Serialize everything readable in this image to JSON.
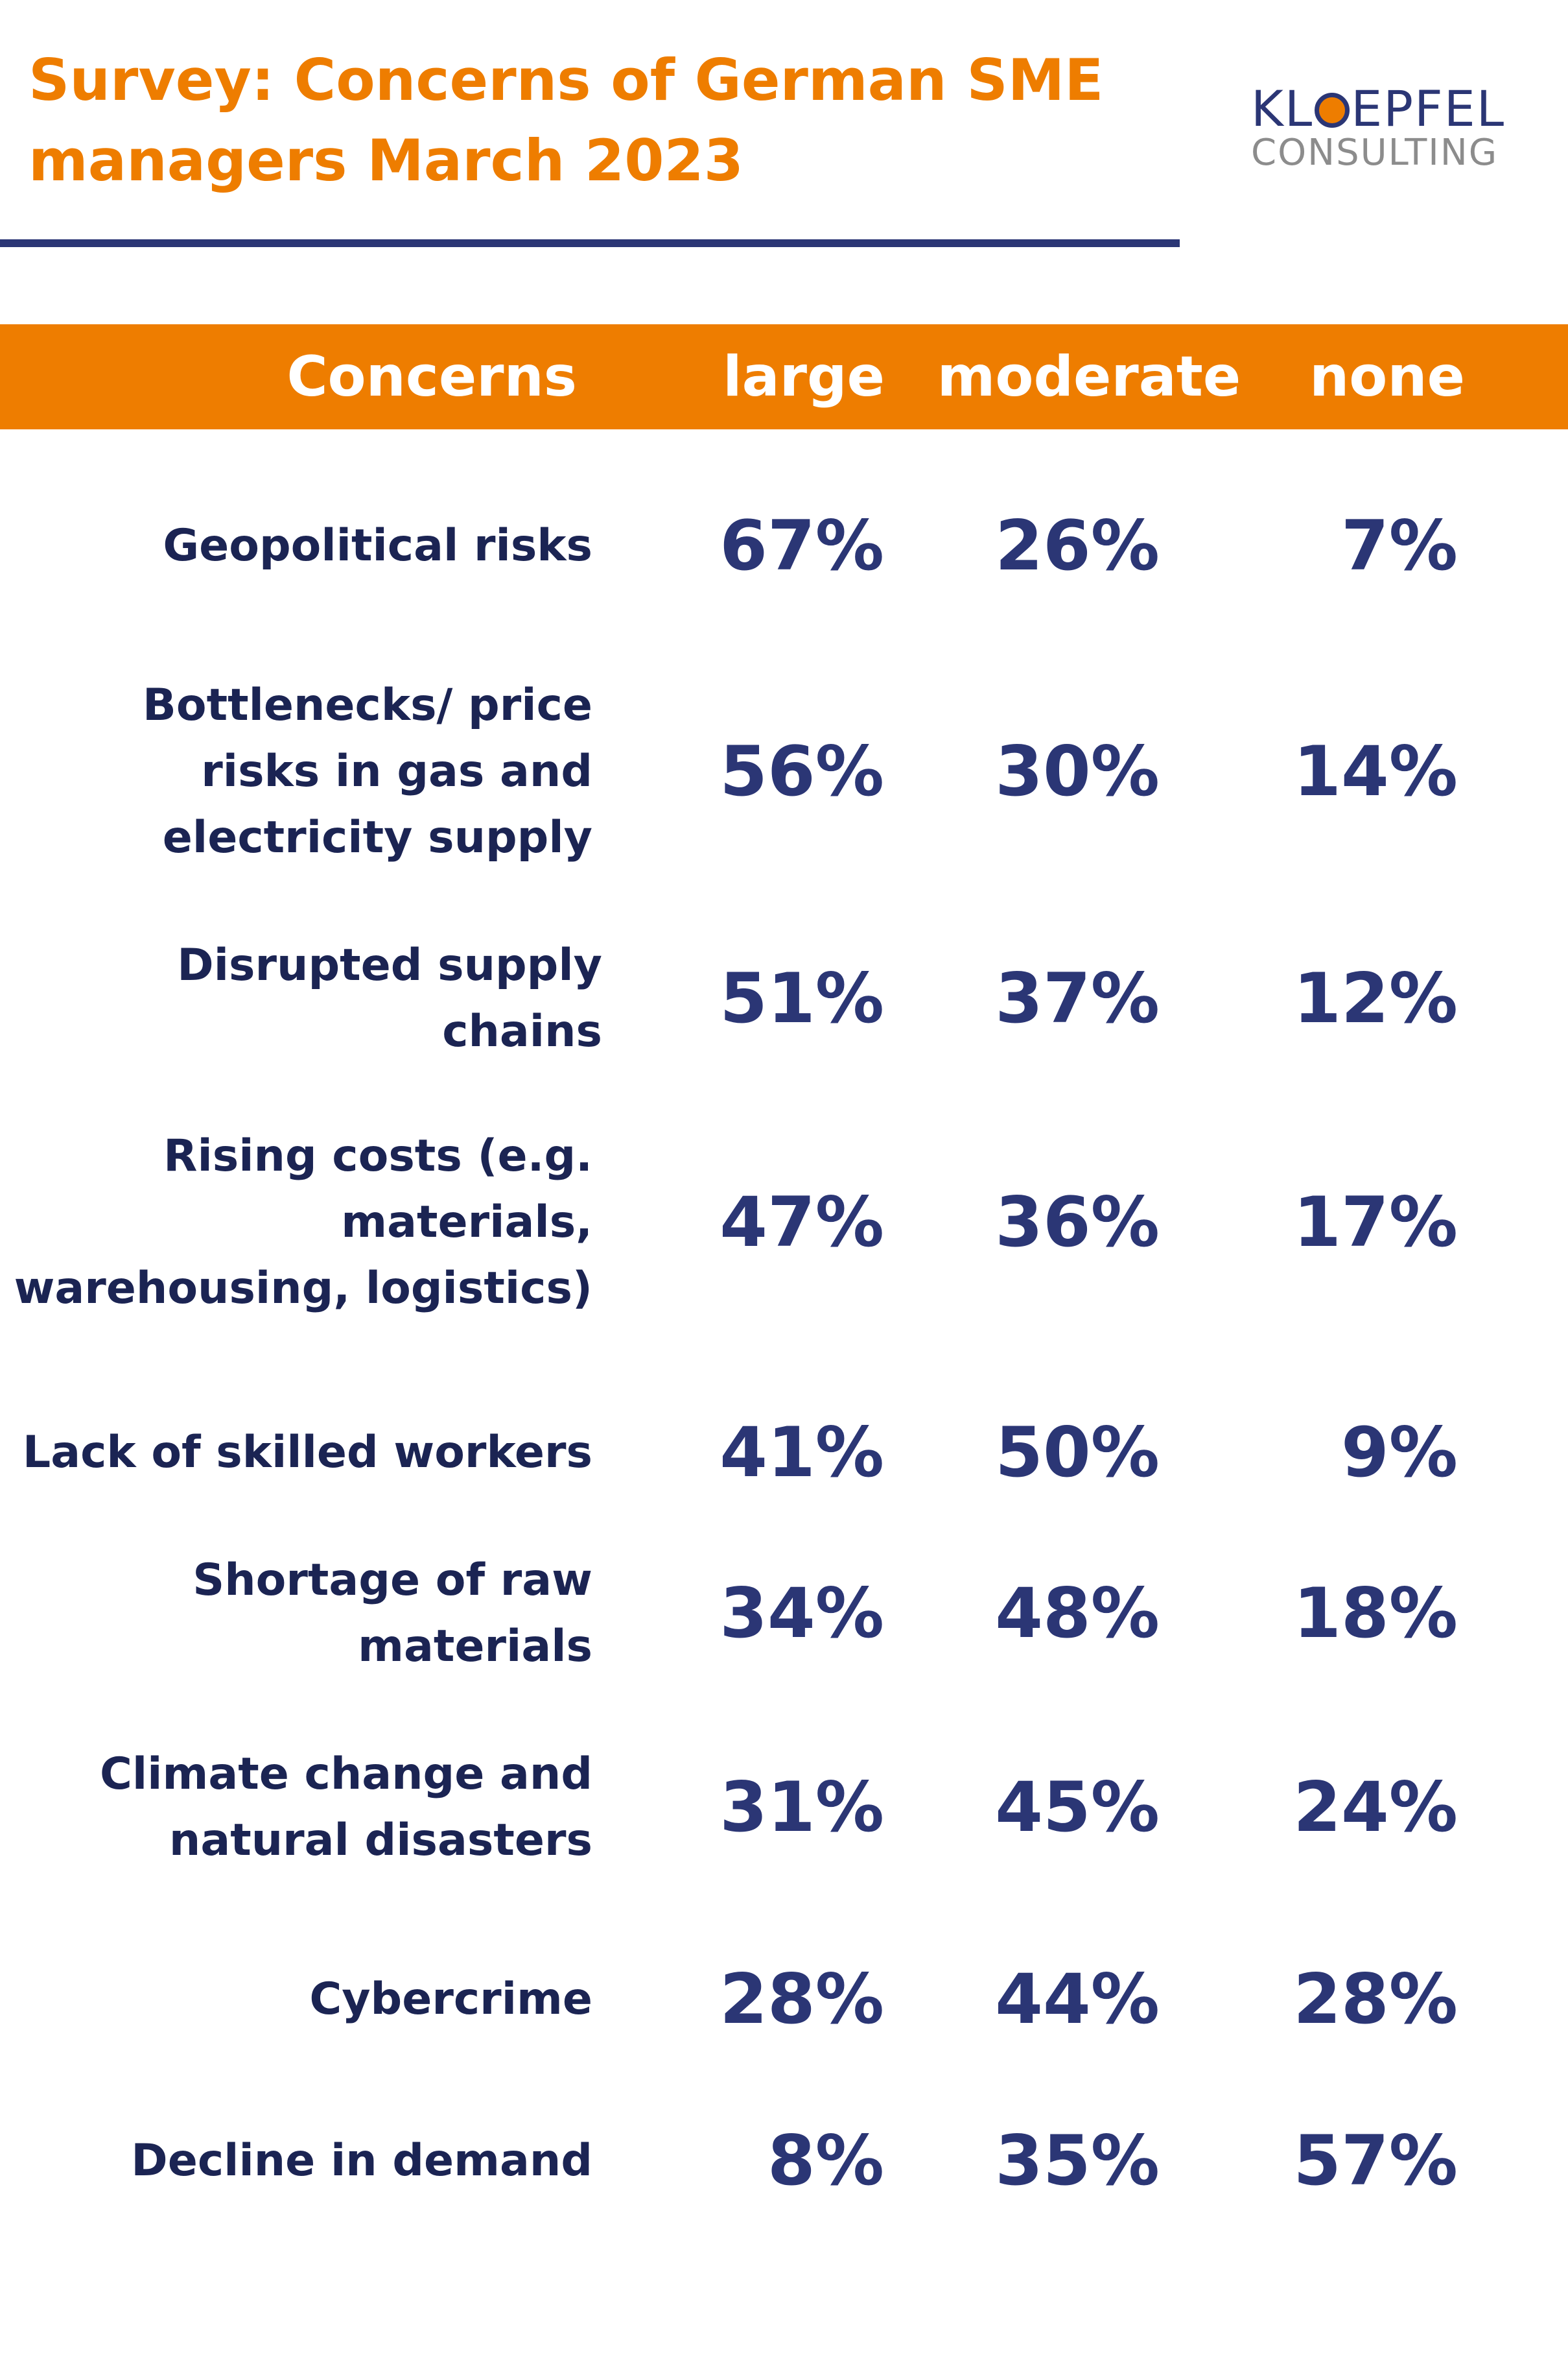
{
  "title": "Survey: Concerns of German SME managers March 2023",
  "logo": {
    "top": "KL",
    "o": "O",
    "rest": "EPFEL",
    "bottom": "CONSULTING"
  },
  "colors": {
    "accent": "#ee7d00",
    "navy": "#2b3675",
    "dark_text": "#1b2453",
    "logo_grey": "#8c8c8c"
  },
  "chart_data": {
    "type": "table",
    "title": "Survey: Concerns of German SME managers March 2023",
    "columns": [
      "Concerns",
      "large",
      "moderate",
      "none"
    ],
    "rows": [
      {
        "concern": "Geopolitical risks",
        "large": "67%",
        "moderate": "26%",
        "none": "7%"
      },
      {
        "concern": "Bottlenecks/ price risks in gas and electricity supply",
        "large": "56%",
        "moderate": "30%",
        "none": "14%"
      },
      {
        "concern": "Disrupted supply chains",
        "large": "51%",
        "moderate": "37%",
        "none": "12%"
      },
      {
        "concern": "Rising costs (e.g. materials, warehousing, logistics)",
        "large": "47%",
        "moderate": "36%",
        "none": "17%"
      },
      {
        "concern": "Lack of skilled workers",
        "large": "41%",
        "moderate": "50%",
        "none": "9%"
      },
      {
        "concern": "Shortage of raw materials",
        "large": "34%",
        "moderate": "48%",
        "none": "18%"
      },
      {
        "concern": "Climate change and natural disasters",
        "large": "31%",
        "moderate": "45%",
        "none": "24%"
      },
      {
        "concern": "Cybercrime",
        "large": "28%",
        "moderate": "44%",
        "none": "28%"
      },
      {
        "concern": "Decline in demand",
        "large": "8%",
        "moderate": "35%",
        "none": "57%"
      }
    ]
  }
}
